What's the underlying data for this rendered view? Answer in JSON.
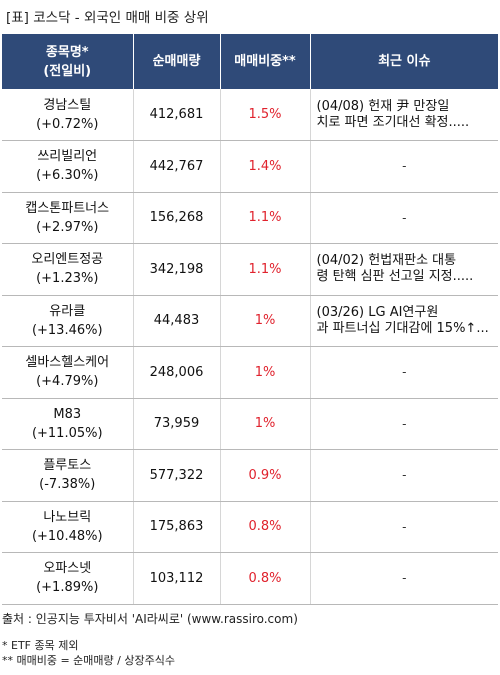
{
  "title": "[표] 코스닥 - 외국인 매매 비중 상위",
  "headers": {
    "name_line1": "종목명*",
    "name_line2": "(전일비)",
    "volume": "순매매량",
    "ratio": "매매비중**",
    "issue": "최근 이슈"
  },
  "rows": [
    {
      "name": "경남스틸",
      "change": "(+0.72%)",
      "volume": "412,681",
      "ratio": "1.5%",
      "issue1": "(04/08) 헌재 尹 만장일",
      "issue2": "치로 파면 조기대선 확정.....",
      "empty": ""
    },
    {
      "name": "쓰리빌리언",
      "change": "(+6.30%)",
      "volume": "442,767",
      "ratio": "1.4%",
      "issue1": "",
      "issue2": "",
      "empty": "-"
    },
    {
      "name": "캡스톤파트너스",
      "change": "(+2.97%)",
      "volume": "156,268",
      "ratio": "1.1%",
      "issue1": "",
      "issue2": "",
      "empty": "-"
    },
    {
      "name": "오리엔트정공",
      "change": "(+1.23%)",
      "volume": "342,198",
      "ratio": "1.1%",
      "issue1": "(04/02) 헌법재판소 대통",
      "issue2": "령 탄핵 심판 선고일 지정.....",
      "empty": ""
    },
    {
      "name": "유라클",
      "change": "(+13.46%)",
      "volume": "44,483",
      "ratio": "1%",
      "issue1": "(03/26) LG AI연구원",
      "issue2": "과 파트너십 기대감에 15%↑...",
      "empty": ""
    },
    {
      "name": "셀바스헬스케어",
      "change": "(+4.79%)",
      "volume": "248,006",
      "ratio": "1%",
      "issue1": "",
      "issue2": "",
      "empty": "-"
    },
    {
      "name": "M83",
      "change": "(+11.05%)",
      "volume": "73,959",
      "ratio": "1%",
      "issue1": "",
      "issue2": "",
      "empty": "-"
    },
    {
      "name": "플루토스",
      "change": "(-7.38%)",
      "volume": "577,322",
      "ratio": "0.9%",
      "issue1": "",
      "issue2": "",
      "empty": "-"
    },
    {
      "name": "나노브릭",
      "change": "(+10.48%)",
      "volume": "175,863",
      "ratio": "0.8%",
      "issue1": "",
      "issue2": "",
      "empty": "-"
    },
    {
      "name": "오파스넷",
      "change": "(+1.89%)",
      "volume": "103,112",
      "ratio": "0.8%",
      "issue1": "",
      "issue2": "",
      "empty": "-"
    }
  ],
  "footer": {
    "source": "출처 : 인공지능 투자비서 'AI라씨로' (www.rassiro.com)",
    "note1": "* ETF 종목 제외",
    "note2": "** 매매비중 = 순매매량 / 상장주식수"
  }
}
